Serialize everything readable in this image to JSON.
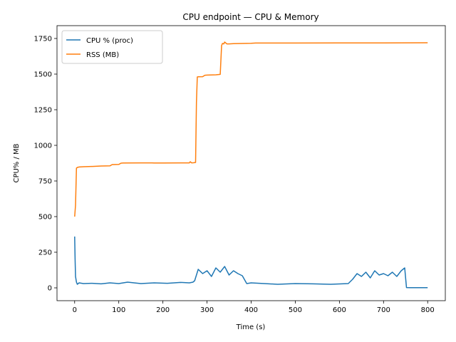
{
  "chart_data": {
    "type": "line",
    "title": "CPU endpoint — CPU & Memory",
    "xlabel": "Time (s)",
    "ylabel": "CPU% / MB",
    "xlim": [
      -40,
      840
    ],
    "ylim": [
      -90,
      1840
    ],
    "xticks": [
      0,
      100,
      200,
      300,
      400,
      500,
      600,
      700,
      800
    ],
    "yticks": [
      0,
      250,
      500,
      750,
      1000,
      1250,
      1500,
      1750
    ],
    "xtick_labels": [
      "0",
      "100",
      "200",
      "300",
      "400",
      "500",
      "600",
      "700",
      "800"
    ],
    "ytick_labels": [
      "0",
      "250",
      "500",
      "750",
      "1000",
      "1250",
      "1500",
      "1750"
    ],
    "grid": false,
    "legend": "top-left",
    "series": [
      {
        "name": "CPU % (proc)",
        "color": "#1f77b4",
        "x": [
          0,
          1,
          2,
          4,
          6,
          10,
          20,
          40,
          60,
          80,
          100,
          120,
          150,
          180,
          210,
          240,
          260,
          268,
          272,
          280,
          290,
          300,
          310,
          320,
          330,
          340,
          350,
          360,
          370,
          380,
          390,
          400,
          430,
          460,
          500,
          540,
          580,
          620,
          630,
          640,
          650,
          660,
          670,
          680,
          690,
          700,
          710,
          720,
          730,
          740,
          748,
          752,
          760,
          800
        ],
        "y": [
          360,
          200,
          80,
          40,
          25,
          35,
          30,
          32,
          28,
          35,
          30,
          40,
          30,
          35,
          32,
          38,
          35,
          40,
          50,
          130,
          100,
          120,
          80,
          140,
          110,
          150,
          90,
          120,
          100,
          85,
          30,
          35,
          30,
          25,
          30,
          28,
          25,
          30,
          60,
          100,
          80,
          110,
          70,
          120,
          90,
          100,
          85,
          110,
          80,
          120,
          140,
          2,
          1,
          1
        ]
      },
      {
        "name": "RSS (MB)",
        "color": "#ff7f0e",
        "x": [
          0,
          2,
          4,
          6,
          10,
          20,
          40,
          60,
          80,
          85,
          100,
          105,
          110,
          150,
          175,
          180,
          200,
          260,
          262,
          265,
          270,
          274,
          276,
          278,
          280,
          290,
          295,
          300,
          320,
          330,
          333,
          335,
          338,
          340,
          345,
          350,
          360,
          380,
          400,
          410,
          500,
          600,
          700,
          800
        ],
        "y": [
          500,
          580,
          840,
          845,
          848,
          850,
          852,
          855,
          856,
          865,
          866,
          875,
          876,
          877,
          877,
          876,
          876,
          877,
          885,
          877,
          878,
          880,
          1300,
          1480,
          1481,
          1482,
          1492,
          1493,
          1495,
          1498,
          1700,
          1715,
          1712,
          1725,
          1712,
          1712,
          1714,
          1715,
          1716,
          1718,
          1718,
          1719,
          1719,
          1720
        ]
      }
    ]
  }
}
